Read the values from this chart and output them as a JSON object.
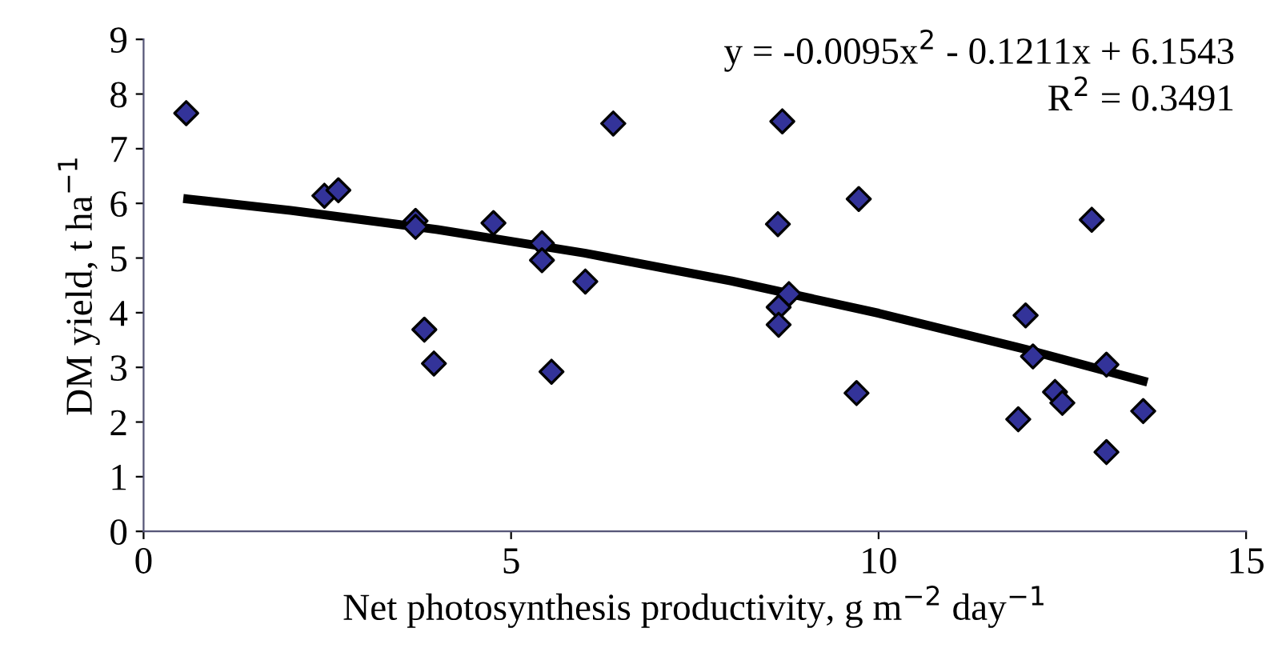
{
  "chart_data": {
    "type": "scatter",
    "xlabel": "Net photosynthesis productivity, g m$^{−2}$ day$^{−1}$",
    "ylabel": "DM yield, t ha$^{−1}$",
    "xlim": [
      0,
      15
    ],
    "xticks": [
      0,
      5,
      10,
      15
    ],
    "ylim": [
      0,
      9
    ],
    "yticks": [
      0,
      1,
      2,
      3,
      4,
      5,
      6,
      7,
      8,
      9
    ],
    "grid": false,
    "series": [
      {
        "marker": "diamond",
        "color": "#333399",
        "x": [
          0.58,
          2.46,
          2.65,
          3.7,
          3.7,
          3.82,
          3.95,
          4.76,
          5.42,
          5.42,
          5.55,
          6.01,
          6.39,
          8.69,
          8.63,
          8.78,
          8.64,
          8.64,
          9.73,
          9.7,
          11.9,
          12.0,
          12.1,
          12.4,
          12.5,
          12.9,
          13.1,
          13.1,
          13.6
        ],
        "values": [
          7.65,
          6.14,
          6.24,
          5.68,
          5.57,
          3.69,
          3.07,
          5.64,
          5.27,
          4.96,
          2.92,
          4.57,
          7.46,
          7.5,
          5.62,
          4.34,
          4.1,
          3.78,
          6.08,
          2.53,
          2.05,
          3.95,
          3.2,
          2.55,
          2.35,
          5.7,
          3.05,
          1.45,
          2.2
        ]
      },
      {
        "type": "line",
        "marker": "none",
        "color": "#000000",
        "x": [
          0.6,
          2,
          4,
          6,
          8,
          10,
          12,
          13.6
        ],
        "values": [
          6.08,
          5.87,
          5.52,
          5.09,
          4.58,
          3.99,
          3.33,
          2.75
        ]
      }
    ],
    "annotations": [
      "y = -0.0095x$^{2}$ - 0.1211x + 6.1543",
      "R$^{2}$ = 0.3491"
    ]
  }
}
